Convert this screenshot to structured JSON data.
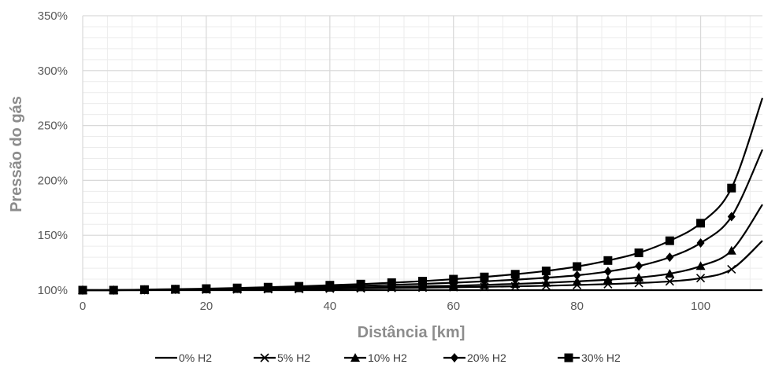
{
  "chart_data": {
    "type": "line",
    "title": "",
    "xlabel": "Distância [km]",
    "ylabel": "Pressão do gás",
    "xlim": [
      0,
      110
    ],
    "ylim": [
      100,
      350
    ],
    "x_ticks": [
      0,
      20,
      40,
      60,
      80,
      100
    ],
    "y_ticks": [
      "100%",
      "150%",
      "200%",
      "250%",
      "300%",
      "350%"
    ],
    "y_tick_values": [
      100,
      150,
      200,
      250,
      300,
      350
    ],
    "grid": "major and minor",
    "legend_position": "bottom",
    "line_color": "#000000",
    "grid_color": "#d9d9d9",
    "x": [
      0,
      5,
      10,
      15,
      20,
      25,
      30,
      35,
      40,
      45,
      50,
      55,
      60,
      65,
      70,
      75,
      80,
      85,
      90,
      95,
      100,
      105,
      110
    ],
    "series": [
      {
        "name": "0% H2",
        "marker": "none",
        "values": [
          100,
          100,
          100,
          100,
          100,
          100,
          100,
          100,
          100,
          100,
          100,
          100,
          100,
          100,
          100,
          100,
          100,
          100,
          100,
          100,
          100,
          100,
          100
        ]
      },
      {
        "name": "5% H2",
        "marker": "x",
        "values": [
          100,
          100,
          100,
          100.3,
          100.5,
          100.7,
          100.9,
          101.1,
          101.4,
          101.7,
          102,
          102.3,
          102.7,
          103,
          103.5,
          104,
          104.7,
          105.5,
          106.5,
          108,
          111,
          119,
          145
        ]
      },
      {
        "name": "10% H2",
        "marker": "triangle",
        "values": [
          100,
          100,
          100.2,
          100.5,
          100.8,
          101.1,
          101.4,
          101.8,
          102.2,
          102.6,
          103,
          103.5,
          104,
          104.8,
          105.7,
          106.7,
          108,
          109.5,
          111.5,
          115,
          122,
          136,
          178
        ]
      },
      {
        "name": "20% H2",
        "marker": "diamond",
        "values": [
          100,
          100,
          100.3,
          100.7,
          101.1,
          101.5,
          102,
          102.6,
          103.3,
          104,
          104.8,
          105.7,
          106.8,
          108,
          109.5,
          111.3,
          113.5,
          117,
          122,
          130,
          143,
          167,
          228
        ]
      },
      {
        "name": "30% H2",
        "marker": "square",
        "values": [
          100,
          100,
          100.5,
          100.9,
          101.4,
          102,
          102.7,
          103.5,
          104.5,
          105.5,
          106.8,
          108.2,
          110,
          112,
          114.5,
          117.5,
          121.5,
          127,
          134,
          145,
          161,
          193,
          275
        ]
      }
    ]
  }
}
